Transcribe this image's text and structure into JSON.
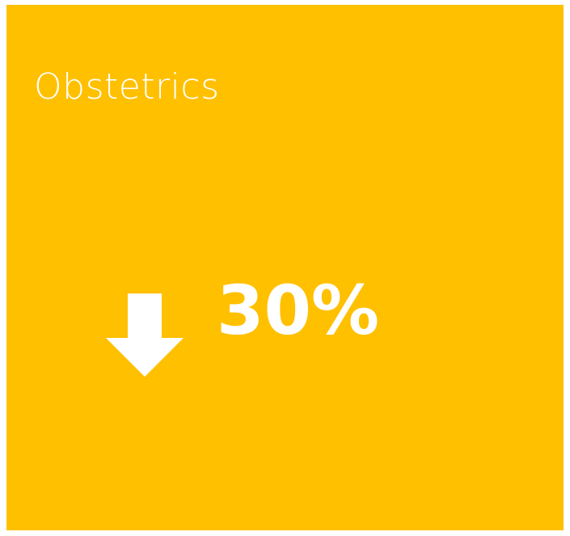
{
  "tile": {
    "title": "Obstetrics",
    "metric": "30%",
    "trend_icon": "arrow-down-icon",
    "background_color": "#FFC000",
    "text_color": "#FFFFFF"
  }
}
